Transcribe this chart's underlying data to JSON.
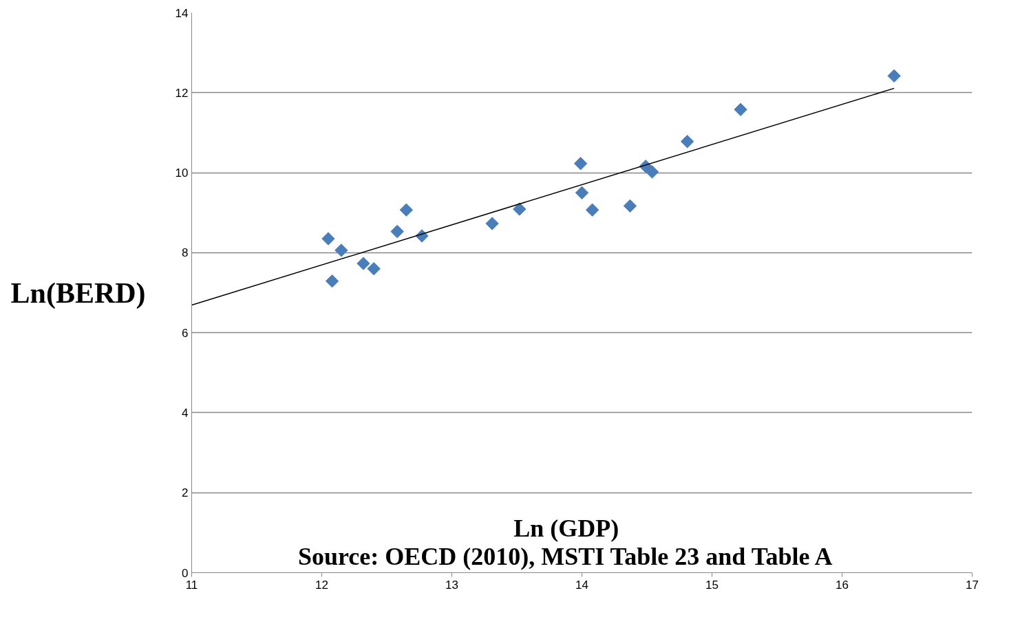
{
  "chart_data": {
    "type": "scatter",
    "xlabel": "Ln (GDP)",
    "ylabel": "Ln(BERD)",
    "annotations": [
      "Source: OECD (2010), MSTI Table 23 and Table A"
    ],
    "xlim": [
      11,
      17
    ],
    "xticks": [
      11,
      12,
      13,
      14,
      15,
      16,
      17
    ],
    "ylim": [
      0,
      14
    ],
    "yticks": [
      0,
      2,
      4,
      6,
      8,
      10,
      12,
      14
    ],
    "grid": "y",
    "marker": "diamond",
    "series": [
      {
        "color": "#4a7ebb",
        "x": [
          12.05,
          12.08,
          12.15,
          12.32,
          12.4,
          12.58,
          12.65,
          12.77,
          13.31,
          13.52,
          13.99,
          14.0,
          14.08,
          14.37,
          14.49,
          14.54,
          14.81,
          15.22,
          16.4
        ],
        "values": [
          8.35,
          7.29,
          8.06,
          7.73,
          7.6,
          8.53,
          9.07,
          8.42,
          8.73,
          9.09,
          10.23,
          9.5,
          9.07,
          9.17,
          10.16,
          10.02,
          10.78,
          11.58,
          12.42
        ]
      },
      {
        "type": "line",
        "marker": "none",
        "color": "#000000",
        "x": [
          11,
          16.4
        ],
        "values": [
          6.69,
          12.11
        ]
      }
    ]
  }
}
